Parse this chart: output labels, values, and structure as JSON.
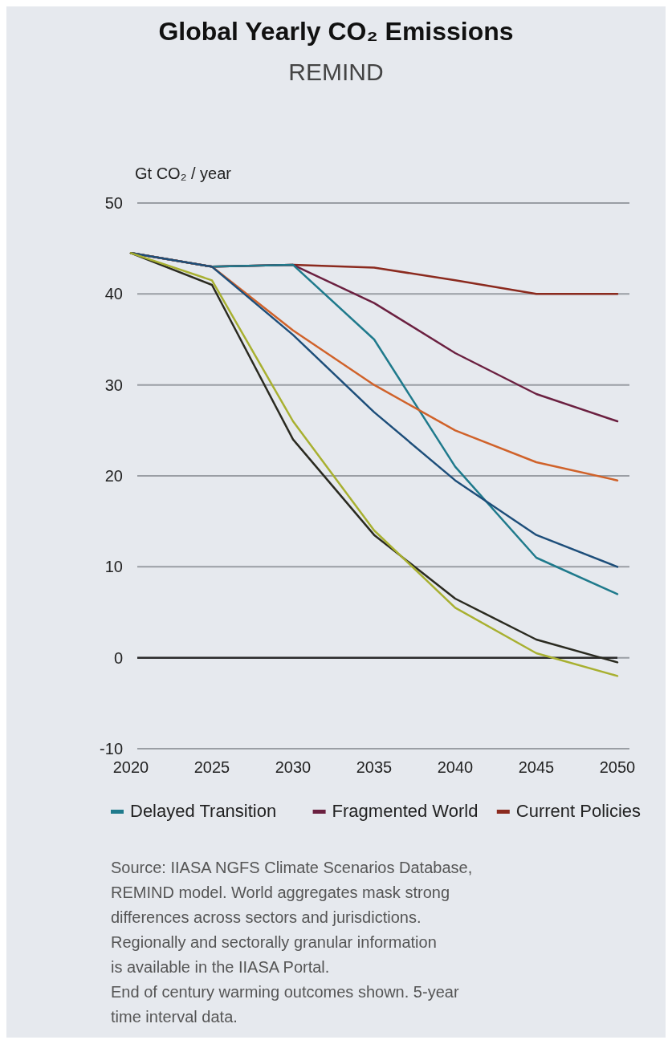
{
  "chart_data": {
    "type": "line",
    "title": "Global Yearly CO₂ Emissions",
    "subtitle": "REMIND",
    "ylabel": "Gt CO₂ / year",
    "x": [
      2020,
      2025,
      2030,
      2035,
      2040,
      2045,
      2050
    ],
    "xlim": [
      2020,
      2050
    ],
    "xticks": [
      2020,
      2025,
      2030,
      2035,
      2040,
      2045,
      2050
    ],
    "ylim": [
      -10,
      50
    ],
    "yticks": [
      -10,
      0,
      10,
      20,
      30,
      40,
      50
    ],
    "grid": "y",
    "legend": "bottom",
    "marker": "none",
    "line_style": "solid",
    "ref_lines": [
      {
        "axis": "y",
        "value": 0,
        "color": "#2b2b2b"
      }
    ],
    "series": [
      {
        "name": "Current Policies",
        "color": "#8b2a1e",
        "values": [
          44.5,
          43,
          43.2,
          42.9,
          41.5,
          40,
          40
        ]
      },
      {
        "name": "Fragmented World",
        "color": "#6b2040",
        "values": [
          44.5,
          43,
          43.2,
          39,
          33.5,
          29,
          26
        ]
      },
      {
        "name": "Delayed Transition",
        "color": "#1f7a8c",
        "values": [
          44.5,
          43,
          43.2,
          35,
          21,
          11,
          7
        ]
      },
      {
        "color": "#d0622a",
        "values": [
          44.5,
          43,
          36,
          30,
          25,
          21.5,
          19.5
        ]
      },
      {
        "color": "#1d4e7a",
        "values": [
          44.5,
          43,
          35.5,
          27,
          19.5,
          13.5,
          10
        ]
      },
      {
        "color": "#2a2a20",
        "values": [
          44.5,
          41,
          24,
          13.5,
          6.5,
          2,
          -0.5
        ]
      },
      {
        "color": "#a8b030",
        "values": [
          44.5,
          41.5,
          26,
          14,
          5.5,
          0.5,
          -2
        ]
      }
    ],
    "annotations": [
      "Source: IIASA NGFS Climate Scenarios Database, REMIND model. World aggregates mask strong differences across sectors and jurisdictions. Regionally and sectorally granular information is available in the IIASA Portal.",
      "End of century warming outcomes shown. 5-year time interval data."
    ]
  }
}
